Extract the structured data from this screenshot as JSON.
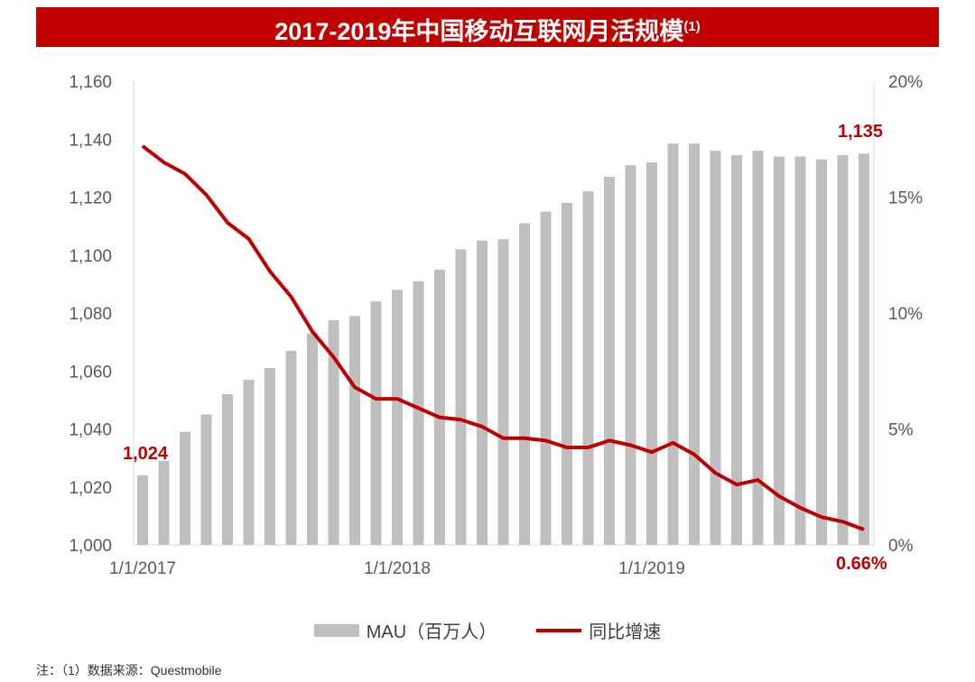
{
  "title": "2017-2019年中国移动互联网月活规模",
  "title_sup": "(1)",
  "chart_data": {
    "type": "bar+line",
    "title": "2017-2019年中国移动互联网月活规模(1)",
    "x_tick_labels": [
      "1/1/2017",
      "1/1/2018",
      "1/1/2019"
    ],
    "x_start": "2017-01",
    "months": 35,
    "y_left": {
      "ylim": [
        1000,
        1160
      ],
      "ticks": [
        "1,000",
        "1,020",
        "1,040",
        "1,060",
        "1,080",
        "1,100",
        "1,120",
        "1,140",
        "1,160"
      ]
    },
    "y_right": {
      "ylim": [
        0,
        20
      ],
      "ticks": [
        "0%",
        "5%",
        "10%",
        "15%",
        "20%"
      ]
    },
    "series": [
      {
        "name": "MAU（百万人）",
        "type": "bar",
        "color": "#bfbfbf",
        "axis": "left",
        "values": [
          1024,
          1029,
          1039,
          1045,
          1052,
          1057,
          1061,
          1067,
          1073,
          1077.5,
          1079,
          1084,
          1088,
          1091,
          1095,
          1102,
          1105,
          1105.5,
          1111,
          1115,
          1118,
          1122,
          1127,
          1131,
          1132,
          1138.5,
          1138.5,
          1136,
          1134.5,
          1136,
          1134,
          1134,
          1133,
          1134.5,
          1135
        ]
      },
      {
        "name": "同比增速",
        "type": "line",
        "color": "#c00000",
        "axis": "right",
        "values": [
          17.2,
          16.5,
          16.0,
          15.1,
          13.9,
          13.2,
          11.8,
          10.7,
          9.2,
          8.1,
          6.8,
          6.3,
          6.3,
          5.9,
          5.5,
          5.4,
          5.1,
          4.6,
          4.6,
          4.5,
          4.2,
          4.2,
          4.5,
          4.3,
          4.0,
          4.4,
          3.9,
          3.1,
          2.6,
          2.8,
          2.1,
          1.6,
          1.2,
          1.0,
          0.66
        ]
      }
    ],
    "annotations": [
      "1,024",
      "1,135",
      "0.66%"
    ],
    "legend": "bottom",
    "grid": false
  },
  "legend": {
    "bar": "MAU（百万人）",
    "line": "同比增速"
  },
  "note": "注：（1）数据来源：Questmobile"
}
